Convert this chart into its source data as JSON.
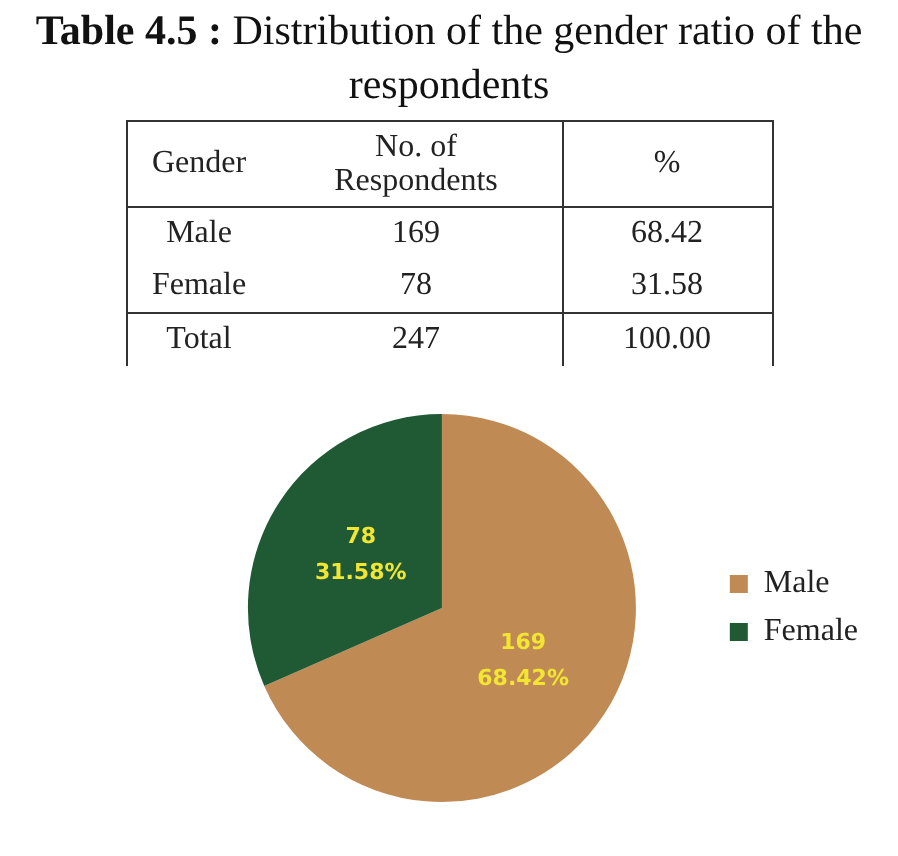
{
  "chart_data": {
    "type": "pie",
    "title": "Table 4.5 :",
    "subtitle": "Distribution of the gender ratio of the respondents",
    "categories": [
      "Male",
      "Female"
    ],
    "values": [
      169,
      78
    ],
    "colors": [
      "#c08a55",
      "#1f5a34"
    ],
    "value_labels": [
      "169\n68.42%",
      "78\n31.58%"
    ],
    "annotations": [
      "Gender",
      "No. of Respondents",
      "%",
      "169",
      "68.42",
      "78",
      "31.58",
      "Total",
      "247",
      "100.00"
    ],
    "legend": "right"
  }
}
